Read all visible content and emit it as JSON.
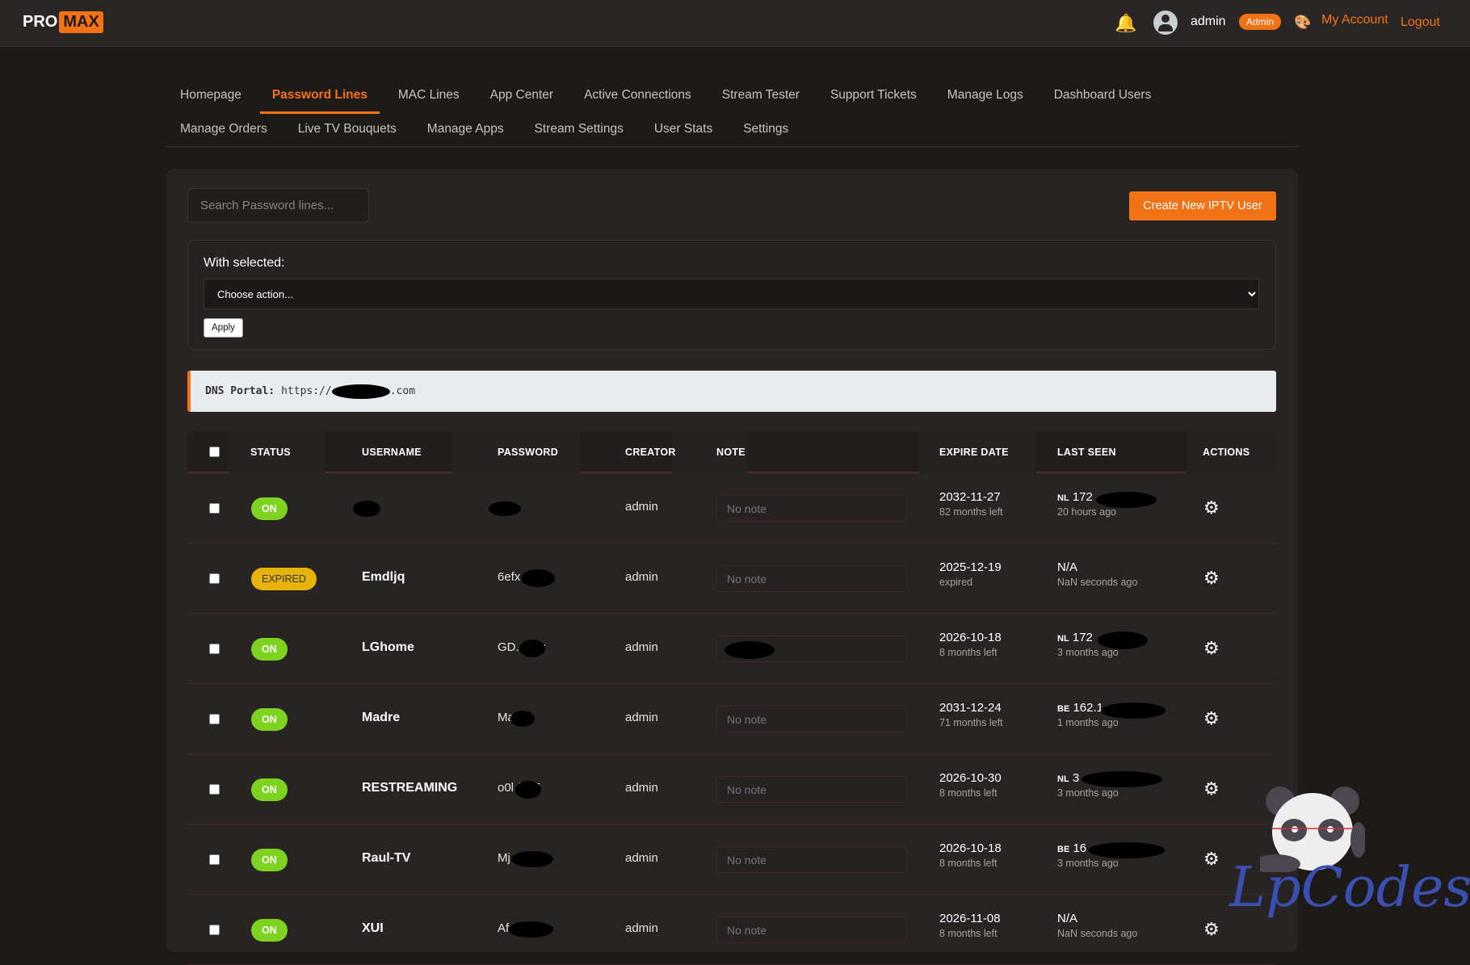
{
  "header": {
    "logo_pro": "PRO",
    "logo_max": "MAX",
    "username": "admin",
    "role_badge": "Admin",
    "my_account": "My Account",
    "logout": "Logout",
    "icons": [
      "bell-icon",
      "user-avatar-icon",
      "palette-icon"
    ]
  },
  "nav": {
    "active": "Password Lines",
    "row1": [
      "Homepage",
      "Password Lines",
      "MAC Lines",
      "App Center",
      "Active Connections",
      "Stream Tester",
      "Support Tickets",
      "Manage Logs",
      "Dashboard Users"
    ],
    "row2": [
      "Manage Orders",
      "Live TV Bouquets",
      "Manage Apps",
      "Stream Settings",
      "User Stats",
      "Settings"
    ]
  },
  "toolbar": {
    "search_placeholder": "Search Password lines...",
    "create_button": "Create New IPTV User"
  },
  "bulk": {
    "label": "With selected:",
    "select_value": "Choose action...",
    "apply": "Apply"
  },
  "dns": {
    "label": "DNS Portal:",
    "prefix": "https://",
    "suffix": ".com"
  },
  "table": {
    "headers": [
      "STATUS",
      "USERNAME",
      "PASSWORD",
      "CREATOR",
      "NOTE",
      "EXPIRE DATE",
      "LAST SEEN",
      "ACTIONS"
    ],
    "rows": [
      {
        "status": "ON",
        "username": "",
        "password": "",
        "creator": "admin",
        "note": "No note",
        "expire": "2032-11-27",
        "expire_sub": "82 months left",
        "seen_cc": "NL",
        "seen": "172",
        "seen_sub": "20 hours ago"
      },
      {
        "status": "EXPIRED",
        "username": "Emdljq",
        "password": "6efx  0",
        "creator": "admin",
        "note": "No note",
        "expire": "2025-12-19",
        "expire_sub": "expired",
        "seen_cc": "",
        "seen": "N/A",
        "seen_sub": "NaN seconds ago"
      },
      {
        "status": "ON",
        "username": "LGhome",
        "password": "GD.  DKv",
        "creator": "admin",
        "note": "",
        "expire": "2026-10-18",
        "expire_sub": "8 months left",
        "seen_cc": "NL",
        "seen": "172",
        "seen_sub": "3 months ago"
      },
      {
        "status": "ON",
        "username": "Madre",
        "password": "Ma  1",
        "creator": "admin",
        "note": "No note",
        "expire": "2031-12-24",
        "expire_sub": "71 months left",
        "seen_cc": "BE",
        "seen": "162.1",
        "seen_sub": "1 months ago"
      },
      {
        "status": "ON",
        "username": "RESTREAMING",
        "password": "o0l  /tCT",
        "creator": "admin",
        "note": "No note",
        "expire": "2026-10-30",
        "expire_sub": "8 months left",
        "seen_cc": "NL",
        "seen": "3",
        "seen_sub": "3 months ago"
      },
      {
        "status": "ON",
        "username": "Raul-TV",
        "password": "Mj  Qw",
        "creator": "admin",
        "note": "No note",
        "expire": "2026-10-18",
        "expire_sub": "8 months left",
        "seen_cc": "BE",
        "seen": "16",
        "seen_sub": "3 months ago"
      },
      {
        "status": "ON",
        "username": "XUI",
        "password": "Af  ue6",
        "creator": "admin",
        "note": "No note",
        "expire": "2026-11-08",
        "expire_sub": "8 months left",
        "seen_cc": "",
        "seen": "N/A",
        "seen_sub": "NaN seconds ago"
      }
    ]
  },
  "watermark": {
    "text": "LpCodes"
  },
  "colors": {
    "accent": "#f47216",
    "on": "#7ed321",
    "expired": "#e8b20d",
    "background": "#1e1a18",
    "panel": "#282423"
  }
}
